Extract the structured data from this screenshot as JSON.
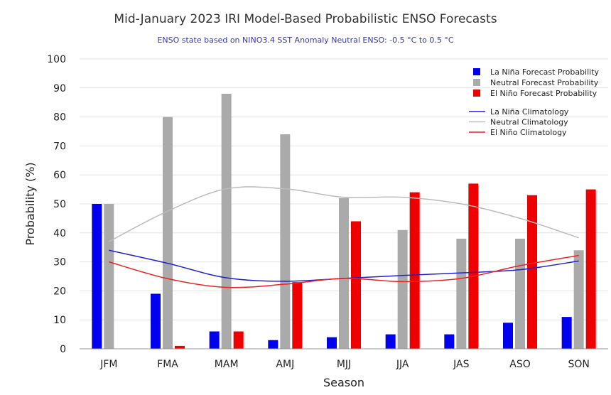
{
  "chart_data": {
    "type": "bar",
    "title": "Mid-January 2023 IRI Model-Based Probabilistic ENSO Forecasts",
    "subtitle": "ENSO state based on NINO3.4 SST Anomaly Neutral ENSO: -0.5 °C to 0.5 °C",
    "xlabel": "Season",
    "ylabel": "Probability (%)",
    "ylim": [
      0,
      100
    ],
    "yticks": [
      0,
      10,
      20,
      30,
      40,
      50,
      60,
      70,
      80,
      90,
      100
    ],
    "grid": true,
    "legend_position": "top-right",
    "categories": [
      "JFM",
      "FMA",
      "MAM",
      "AMJ",
      "MJJ",
      "JJA",
      "JAS",
      "ASO",
      "SON"
    ],
    "series": [
      {
        "name": "La Niña Forecast Probability",
        "kind": "bar",
        "color": "#0000ee",
        "values": [
          50,
          19,
          6,
          3,
          4,
          5,
          5,
          9,
          11
        ]
      },
      {
        "name": "Neutral Forecast Probability",
        "kind": "bar",
        "color": "#aaaaaa",
        "values": [
          50,
          80,
          88,
          74,
          52,
          41,
          38,
          38,
          34
        ]
      },
      {
        "name": "El Niño Forecast Probability",
        "kind": "bar",
        "color": "#ee0000",
        "values": [
          0,
          1,
          6,
          23,
          44,
          54,
          57,
          53,
          55
        ]
      }
    ],
    "lines": [
      {
        "name": "La Niña Climatology",
        "kind": "line",
        "color": "#2222cc",
        "values": [
          34,
          29.5,
          24.5,
          23.3,
          24.3,
          25.3,
          26.2,
          27.3,
          30.3
        ]
      },
      {
        "name": "Neutral Climatology",
        "kind": "line",
        "color": "#bbbbbb",
        "values": [
          37,
          47.5,
          55.2,
          55.2,
          52.3,
          52.3,
          50,
          45,
          38.3
        ]
      },
      {
        "name": "El Niño Climatology",
        "kind": "line",
        "color": "#ee2222",
        "values": [
          30,
          24.2,
          21.2,
          22.3,
          24.3,
          23.2,
          24.3,
          28.7,
          32.2
        ]
      }
    ]
  }
}
